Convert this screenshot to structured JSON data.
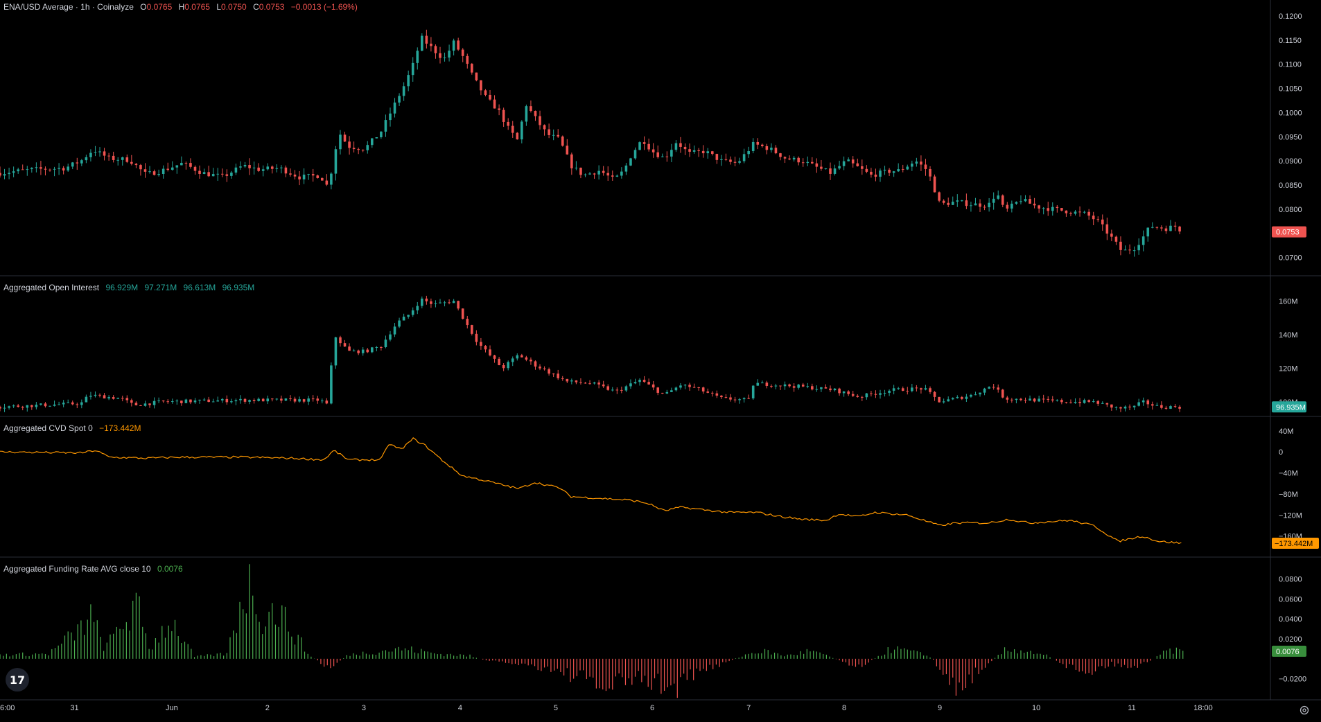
{
  "main_legend": {
    "symbol": "ENA/USD Average · 1h · Coinalyze",
    "o_label": "O",
    "o": "0.0765",
    "h_label": "H",
    "h": "0.0765",
    "l_label": "L",
    "l": "0.0750",
    "c_label": "C",
    "c": "0.0753",
    "change": "−0.0013 (−1.69%)"
  },
  "oi_legend": {
    "name": "Aggregated Open Interest",
    "values": [
      "96.929M",
      "97.271M",
      "96.613M",
      "96.935M"
    ]
  },
  "cvd_legend": {
    "name": "Aggregated CVD Spot 0",
    "value": "−173.442M"
  },
  "funding_legend": {
    "name": "Aggregated Funding Rate AVG close 10",
    "value": "0.0076"
  },
  "price_badges": {
    "main": "0.0753",
    "oi": "96.935M",
    "cvd": "−173.442M",
    "funding": "0.0076"
  },
  "colors": {
    "up": "#26a69a",
    "down": "#ef5350",
    "cvd": "#ff9800",
    "funding_pos": "#4caf50",
    "funding_neg": "#ef5350",
    "axis_text": "#d1d4dc",
    "divider": "#2a2e39"
  },
  "icons": {
    "logo": "tradingview-logo-icon",
    "settings": "gear-icon"
  },
  "logo_text": "17",
  "chart_data": [
    {
      "type": "candlestick",
      "title": "ENA/USD Average · 1h · Coinalyze",
      "x_tick_labels": [
        "6:00",
        "31",
        "Jun",
        "2",
        "3",
        "4",
        "5",
        "6",
        "7",
        "8",
        "9",
        "10",
        "11",
        "18:00"
      ],
      "y_tick_labels": [
        "0.1200",
        "0.1150",
        "0.1100",
        "0.1050",
        "0.1000",
        "0.0950",
        "0.0900",
        "0.0850",
        "0.0800",
        "0.0700"
      ],
      "ylim": [
        0.0675,
        0.121
      ],
      "last": 0.0753,
      "close_path": [
        [
          0,
          0.0875
        ],
        [
          40,
          0.0882
        ],
        [
          80,
          0.0885
        ],
        [
          100,
          0.09
        ],
        [
          115,
          0.0923
        ],
        [
          135,
          0.0905
        ],
        [
          160,
          0.0902
        ],
        [
          180,
          0.0872
        ],
        [
          200,
          0.088
        ],
        [
          225,
          0.0895
        ],
        [
          250,
          0.0875
        ],
        [
          275,
          0.0867
        ],
        [
          300,
          0.089
        ],
        [
          320,
          0.0882
        ],
        [
          345,
          0.0885
        ],
        [
          370,
          0.0866
        ],
        [
          395,
          0.087
        ],
        [
          405,
          0.0845
        ],
        [
          412,
          0.0905
        ],
        [
          418,
          0.096
        ],
        [
          430,
          0.093
        ],
        [
          450,
          0.0925
        ],
        [
          470,
          0.096
        ],
        [
          485,
          0.101
        ],
        [
          500,
          0.106
        ],
        [
          510,
          0.11
        ],
        [
          520,
          0.1155
        ],
        [
          535,
          0.113
        ],
        [
          548,
          0.111
        ],
        [
          560,
          0.1145
        ],
        [
          570,
          0.112
        ],
        [
          585,
          0.107
        ],
        [
          600,
          0.103
        ],
        [
          615,
          0.1005
        ],
        [
          628,
          0.0965
        ],
        [
          640,
          0.094
        ],
        [
          648,
          0.102
        ],
        [
          660,
          0.099
        ],
        [
          675,
          0.0955
        ],
        [
          690,
          0.0945
        ],
        [
          705,
          0.089
        ],
        [
          720,
          0.087
        ],
        [
          740,
          0.088
        ],
        [
          758,
          0.086
        ],
        [
          770,
          0.088
        ],
        [
          780,
          0.0915
        ],
        [
          793,
          0.0945
        ],
        [
          805,
          0.092
        ],
        [
          820,
          0.0905
        ],
        [
          835,
          0.094
        ],
        [
          850,
          0.0915
        ],
        [
          870,
          0.092
        ],
        [
          890,
          0.09
        ],
        [
          910,
          0.0895
        ],
        [
          930,
          0.0935
        ],
        [
          950,
          0.0925
        ],
        [
          970,
          0.0905
        ],
        [
          990,
          0.09
        ],
        [
          1010,
          0.0885
        ],
        [
          1025,
          0.0875
        ],
        [
          1045,
          0.09
        ],
        [
          1060,
          0.0885
        ],
        [
          1075,
          0.087
        ],
        [
          1095,
          0.0878
        ],
        [
          1110,
          0.088
        ],
        [
          1130,
          0.09
        ],
        [
          1145,
          0.088
        ],
        [
          1160,
          0.081
        ],
        [
          1180,
          0.0815
        ],
        [
          1200,
          0.081
        ],
        [
          1220,
          0.0808
        ],
        [
          1230,
          0.0835
        ],
        [
          1240,
          0.0795
        ],
        [
          1260,
          0.082
        ],
        [
          1280,
          0.0805
        ],
        [
          1300,
          0.08
        ],
        [
          1320,
          0.0795
        ],
        [
          1340,
          0.079
        ],
        [
          1355,
          0.0775
        ],
        [
          1370,
          0.0745
        ],
        [
          1385,
          0.0712
        ],
        [
          1400,
          0.072
        ],
        [
          1410,
          0.074
        ],
        [
          1420,
          0.0765
        ],
        [
          1440,
          0.076
        ],
        [
          1450,
          0.0765
        ],
        [
          1460,
          0.0753
        ]
      ]
    },
    {
      "type": "candlestick",
      "title": "Aggregated Open Interest",
      "y_tick_labels": [
        "160M",
        "140M",
        "120M",
        "100M"
      ],
      "ylim": [
        95,
        168
      ],
      "last": 96.935,
      "close_path": [
        [
          0,
          97
        ],
        [
          100,
          99
        ],
        [
          110,
          104
        ],
        [
          150,
          102
        ],
        [
          165,
          98
        ],
        [
          200,
          100
        ],
        [
          300,
          101
        ],
        [
          395,
          101
        ],
        [
          405,
          98
        ],
        [
          412,
          140
        ],
        [
          430,
          130
        ],
        [
          450,
          130
        ],
        [
          470,
          133
        ],
        [
          490,
          147
        ],
        [
          505,
          152
        ],
        [
          520,
          161
        ],
        [
          535,
          158
        ],
        [
          560,
          160
        ],
        [
          575,
          147
        ],
        [
          590,
          135
        ],
        [
          620,
          120
        ],
        [
          640,
          128
        ],
        [
          660,
          122
        ],
        [
          700,
          112
        ],
        [
          730,
          111
        ],
        [
          760,
          106
        ],
        [
          790,
          113
        ],
        [
          820,
          104
        ],
        [
          840,
          110
        ],
        [
          860,
          108
        ],
        [
          890,
          102
        ],
        [
          925,
          101
        ],
        [
          930,
          111
        ],
        [
          960,
          110
        ],
        [
          990,
          109
        ],
        [
          1030,
          107
        ],
        [
          1060,
          103
        ],
        [
          1100,
          107
        ],
        [
          1140,
          108
        ],
        [
          1160,
          100
        ],
        [
          1200,
          104
        ],
        [
          1225,
          110
        ],
        [
          1240,
          102
        ],
        [
          1280,
          101
        ],
        [
          1320,
          100
        ],
        [
          1350,
          100
        ],
        [
          1380,
          96
        ],
        [
          1400,
          97
        ],
        [
          1410,
          100
        ],
        [
          1430,
          97
        ],
        [
          1460,
          96.9
        ]
      ]
    },
    {
      "type": "line",
      "title": "Aggregated CVD Spot 0",
      "y_tick_labels": [
        "40M",
        "0",
        "−40M",
        "−80M",
        "−120M",
        "−160M"
      ],
      "ylim": [
        -188,
        45
      ],
      "last": -173.442,
      "points": [
        [
          0,
          0
        ],
        [
          100,
          -2
        ],
        [
          118,
          3
        ],
        [
          135,
          -10
        ],
        [
          180,
          -12
        ],
        [
          220,
          -10
        ],
        [
          300,
          -10
        ],
        [
          360,
          -12
        ],
        [
          400,
          -15
        ],
        [
          412,
          3
        ],
        [
          430,
          -15
        ],
        [
          470,
          -15
        ],
        [
          480,
          15
        ],
        [
          495,
          5
        ],
        [
          510,
          25
        ],
        [
          525,
          12
        ],
        [
          545,
          -15
        ],
        [
          570,
          -45
        ],
        [
          600,
          -55
        ],
        [
          640,
          -70
        ],
        [
          660,
          -58
        ],
        [
          690,
          -68
        ],
        [
          705,
          -85
        ],
        [
          740,
          -88
        ],
        [
          780,
          -92
        ],
        [
          800,
          -98
        ],
        [
          820,
          -112
        ],
        [
          840,
          -105
        ],
        [
          880,
          -112
        ],
        [
          900,
          -115
        ],
        [
          935,
          -115
        ],
        [
          960,
          -122
        ],
        [
          990,
          -128
        ],
        [
          1020,
          -130
        ],
        [
          1035,
          -118
        ],
        [
          1060,
          -123
        ],
        [
          1080,
          -115
        ],
        [
          1120,
          -120
        ],
        [
          1160,
          -140
        ],
        [
          1180,
          -135
        ],
        [
          1220,
          -135
        ],
        [
          1245,
          -128
        ],
        [
          1270,
          -135
        ],
        [
          1320,
          -130
        ],
        [
          1350,
          -140
        ],
        [
          1365,
          -155
        ],
        [
          1380,
          -170
        ],
        [
          1410,
          -160
        ],
        [
          1430,
          -170
        ],
        [
          1460,
          -173.442
        ]
      ]
    },
    {
      "type": "bar",
      "title": "Aggregated Funding Rate AVG close 10",
      "y_tick_labels": [
        "0.0800",
        "0.0600",
        "0.0400",
        "0.0200",
        "0.0076",
        "−0.0200"
      ],
      "ylim": [
        -0.032,
        0.09
      ],
      "last": 0.0076,
      "profile": [
        [
          0,
          0.004
        ],
        [
          60,
          0.005
        ],
        [
          100,
          0.03
        ],
        [
          110,
          0.045
        ],
        [
          130,
          0.01
        ],
        [
          150,
          0.035
        ],
        [
          170,
          0.05
        ],
        [
          185,
          0.01
        ],
        [
          210,
          0.04
        ],
        [
          240,
          0.002
        ],
        [
          280,
          0.005
        ],
        [
          300,
          0.065
        ],
        [
          310,
          0.075
        ],
        [
          325,
          0.04
        ],
        [
          340,
          0.05
        ],
        [
          360,
          0.03
        ],
        [
          380,
          0.005
        ],
        [
          405,
          -0.01
        ],
        [
          430,
          0.004
        ],
        [
          470,
          0.008
        ],
        [
          500,
          0.01
        ],
        [
          540,
          0.005
        ],
        [
          580,
          0.003
        ],
        [
          600,
          -0.002
        ],
        [
          640,
          -0.005
        ],
        [
          680,
          -0.01
        ],
        [
          720,
          -0.02
        ],
        [
          745,
          -0.03
        ],
        [
          780,
          -0.02
        ],
        [
          800,
          -0.022
        ],
        [
          830,
          -0.03
        ],
        [
          860,
          -0.015
        ],
        [
          890,
          -0.005
        ],
        [
          920,
          0.004
        ],
        [
          940,
          0.008
        ],
        [
          970,
          0.003
        ],
        [
          1000,
          0.008
        ],
        [
          1020,
          0.003
        ],
        [
          1060,
          -0.008
        ],
        [
          1100,
          0.01
        ],
        [
          1120,
          0.008
        ],
        [
          1150,
          0.002
        ],
        [
          1170,
          -0.025
        ],
        [
          1190,
          -0.027
        ],
        [
          1210,
          -0.01
        ],
        [
          1240,
          0.008
        ],
        [
          1260,
          0.009
        ],
        [
          1290,
          0.004
        ],
        [
          1320,
          -0.008
        ],
        [
          1345,
          -0.013
        ],
        [
          1370,
          -0.005
        ],
        [
          1400,
          -0.008
        ],
        [
          1420,
          -0.002
        ],
        [
          1440,
          0.008
        ],
        [
          1460,
          0.0076
        ]
      ]
    }
  ]
}
